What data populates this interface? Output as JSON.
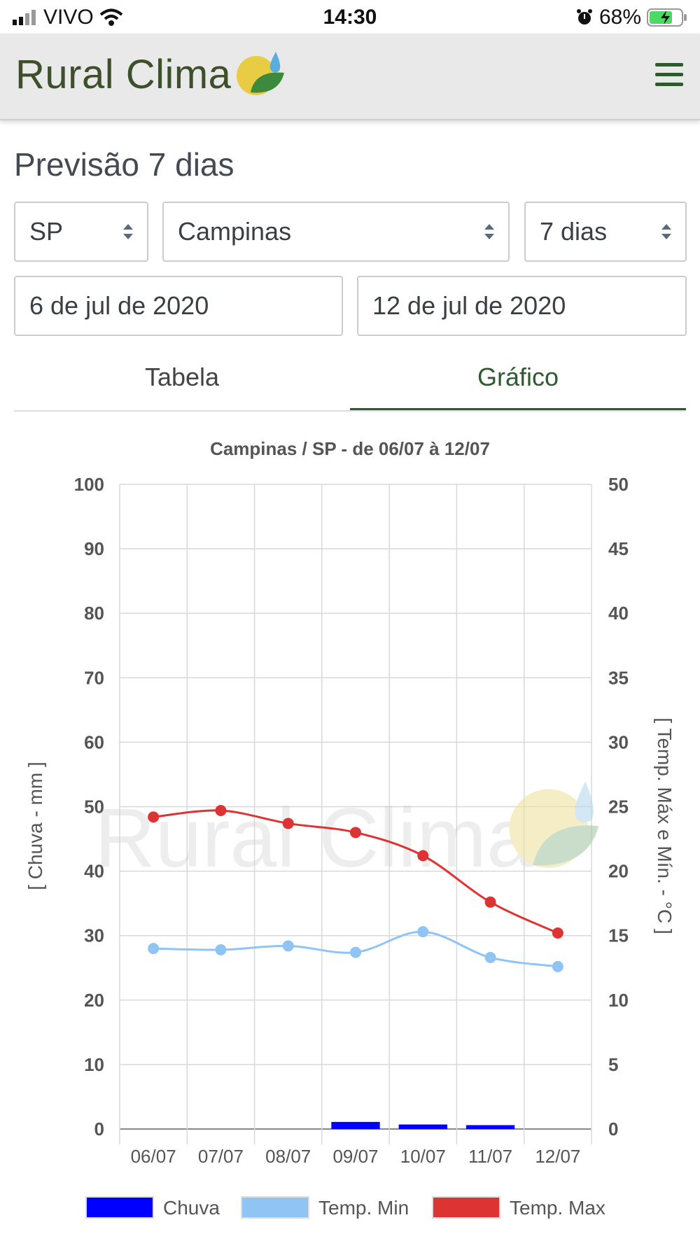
{
  "status_bar": {
    "carrier": "VIVO",
    "time": "14:30",
    "battery": "68%"
  },
  "header": {
    "brand": "Rural Clima"
  },
  "page": {
    "title": "Previsão 7 dias"
  },
  "filters": {
    "state": "SP",
    "city": "Campinas",
    "period": "7 dias",
    "start_date": "6 de jul de 2020",
    "end_date": "12 de jul de 2020"
  },
  "tabs": {
    "table_label": "Tabela",
    "chart_label": "Gráfico",
    "active": "Gráfico"
  },
  "colors": {
    "accent": "#2f5a2f",
    "chuva": "#0000ff",
    "temp_min": "#90c4f4",
    "temp_max": "#dd3333"
  },
  "chart_data": {
    "type": "bar",
    "title": "Campinas / SP - de 06/07 à 12/07",
    "watermark": "Rural Clima",
    "categories": [
      "06/07",
      "07/07",
      "08/07",
      "09/07",
      "10/07",
      "11/07",
      "12/07"
    ],
    "y_left": {
      "label": "[ Chuva - mm ]",
      "min": 0,
      "max": 100,
      "ticks": [
        0,
        10,
        20,
        30,
        40,
        50,
        60,
        70,
        80,
        90,
        100
      ]
    },
    "y_right": {
      "label": "[ Temp. Máx e Mín. - °C ]",
      "min": 0,
      "max": 50,
      "ticks": [
        0,
        5,
        10,
        15,
        20,
        25,
        30,
        35,
        40,
        45,
        50
      ]
    },
    "grid": true,
    "legend_position": "bottom",
    "series": [
      {
        "name": "Chuva",
        "type": "bar",
        "axis": "left",
        "values": [
          0,
          0,
          0,
          1.1,
          0.7,
          0.6,
          0
        ]
      },
      {
        "name": "Temp. Min",
        "type": "line",
        "axis": "right",
        "values": [
          14.0,
          13.9,
          14.2,
          13.7,
          15.3,
          13.3,
          12.6
        ]
      },
      {
        "name": "Temp. Max",
        "type": "line",
        "axis": "right",
        "values": [
          24.2,
          24.7,
          23.7,
          23.0,
          21.2,
          17.6,
          15.2
        ]
      }
    ]
  }
}
